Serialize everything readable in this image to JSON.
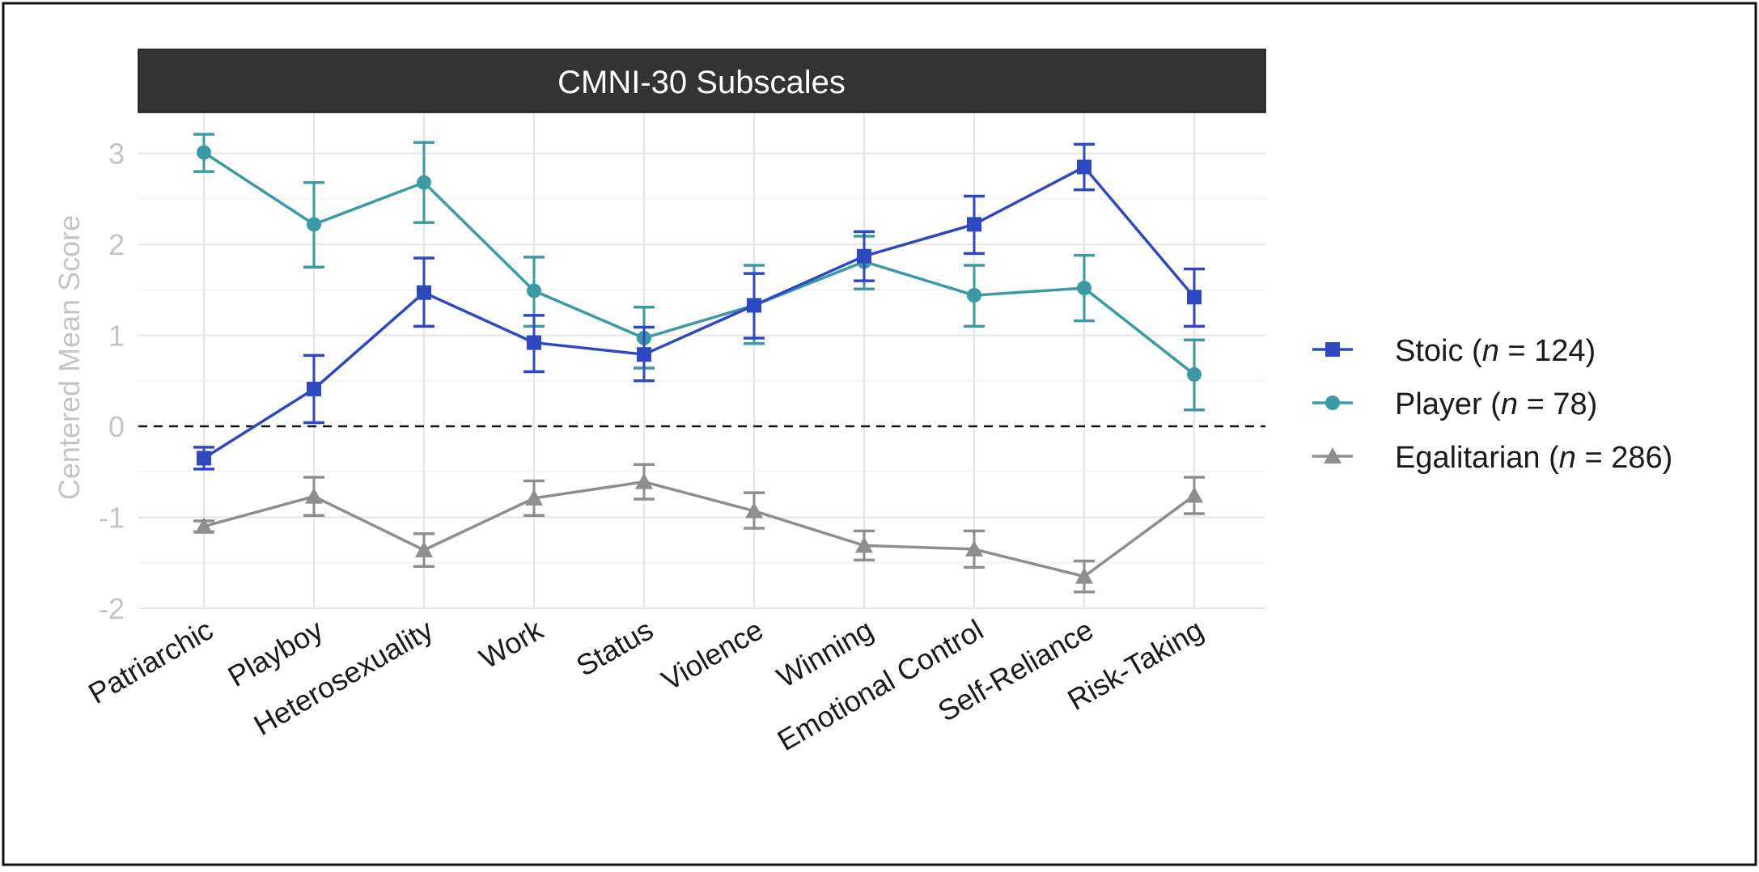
{
  "chart_data": {
    "type": "line",
    "title": "CMNI-30 Subscales",
    "ylabel": "Centered Mean Score",
    "xlabel": "",
    "ylim": [
      -2.0,
      3.45
    ],
    "yticks": [
      -2,
      -1,
      0,
      1,
      2,
      3
    ],
    "reference_line": 0,
    "grid": true,
    "legend_position": "right",
    "categories": [
      "Patriarchic",
      "Playboy",
      "Heterosexuality",
      "Work",
      "Status",
      "Violence",
      "Winning",
      "Emotional Control",
      "Self-Reliance",
      "Risk-Taking"
    ],
    "series": [
      {
        "name_prefix": "Stoic (",
        "name_n": "n",
        "name_suffix": " = 124)",
        "marker": "square",
        "color": "#2d49c2",
        "values": [
          -0.35,
          0.41,
          1.47,
          0.92,
          0.79,
          1.33,
          1.87,
          2.22,
          2.85,
          1.42
        ],
        "lower": [
          -0.47,
          0.04,
          1.1,
          0.6,
          0.5,
          0.97,
          1.6,
          1.9,
          2.6,
          1.1
        ],
        "upper": [
          -0.23,
          0.78,
          1.85,
          1.22,
          1.09,
          1.68,
          2.14,
          2.53,
          3.1,
          1.73
        ]
      },
      {
        "name_prefix": "Player (",
        "name_n": "n",
        "name_suffix": " = 78)",
        "marker": "circle",
        "color": "#3a9aa5",
        "values": [
          3.01,
          2.22,
          2.68,
          1.49,
          0.97,
          1.33,
          1.81,
          1.44,
          1.52,
          0.57
        ],
        "lower": [
          2.8,
          1.75,
          2.24,
          1.1,
          0.64,
          0.91,
          1.51,
          1.1,
          1.16,
          0.18
        ],
        "upper": [
          3.21,
          2.68,
          3.12,
          1.86,
          1.31,
          1.77,
          2.09,
          1.77,
          1.88,
          0.95
        ]
      },
      {
        "name_prefix": "Egalitarian (",
        "name_n": "n",
        "name_suffix": " = 286)",
        "marker": "triangle",
        "color": "#8e8e8e",
        "values": [
          -1.1,
          -0.77,
          -1.36,
          -0.79,
          -0.61,
          -0.93,
          -1.31,
          -1.35,
          -1.65,
          -0.76
        ],
        "lower": [
          -1.16,
          -0.98,
          -1.54,
          -0.98,
          -0.8,
          -1.12,
          -1.47,
          -1.55,
          -1.82,
          -0.96
        ],
        "upper": [
          -1.04,
          -0.56,
          -1.18,
          -0.6,
          -0.42,
          -0.73,
          -1.15,
          -1.15,
          -1.48,
          -0.56
        ]
      }
    ]
  }
}
